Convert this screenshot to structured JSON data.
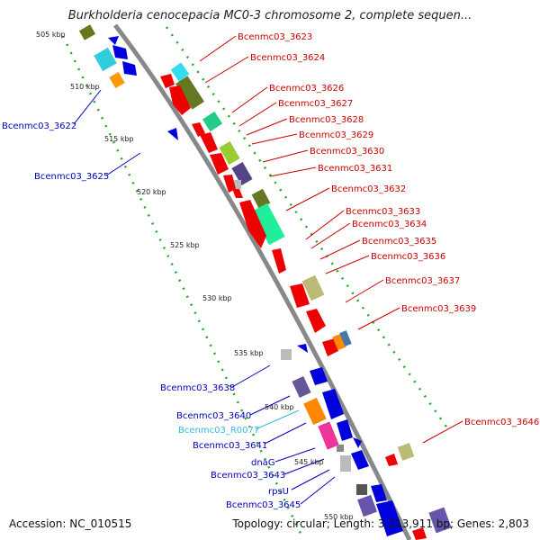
{
  "title": "Burkholderia cenocepacia MC0-3 chromosome 2, complete sequen...",
  "accession": "Accession: NC_010515",
  "summary": "Topology: circular; Length: 3,213,911 bp; Genes: 2,803",
  "colors": {
    "plus_label": "#cc0000",
    "minus_label": "#0000bb",
    "rna_label": "#33bbdd",
    "backbone": "#888888",
    "gc_track": "#22aa22"
  },
  "ticks": [
    "505 kbp",
    "510 kbp",
    "515 kbp",
    "520 kbp",
    "525 kbp",
    "530 kbp",
    "535 kbp",
    "540 kbp",
    "545 kbp",
    "550 kbp"
  ],
  "right_labels": [
    "Bcenmc03_3623",
    "Bcenmc03_3624",
    "Bcenmc03_3626",
    "Bcenmc03_3627",
    "Bcenmc03_3628",
    "Bcenmc03_3629",
    "Bcenmc03_3630",
    "Bcenmc03_3631",
    "Bcenmc03_3632",
    "Bcenmc03_3633",
    "Bcenmc03_3634",
    "Bcenmc03_3635",
    "Bcenmc03_3636",
    "Bcenmc03_3637",
    "Bcenmc03_3639",
    "Bcenmc03_3646"
  ],
  "left_labels": [
    "Bcenmc03_3622",
    "Bcenmc03_3625",
    "Bcenmc03_3638",
    "Bcenmc03_3640",
    "Bcenmc03_R0077",
    "Bcenmc03_3641",
    "dnaG",
    "Bcenmc03_3643",
    "rpsU",
    "Bcenmc03_3645"
  ]
}
